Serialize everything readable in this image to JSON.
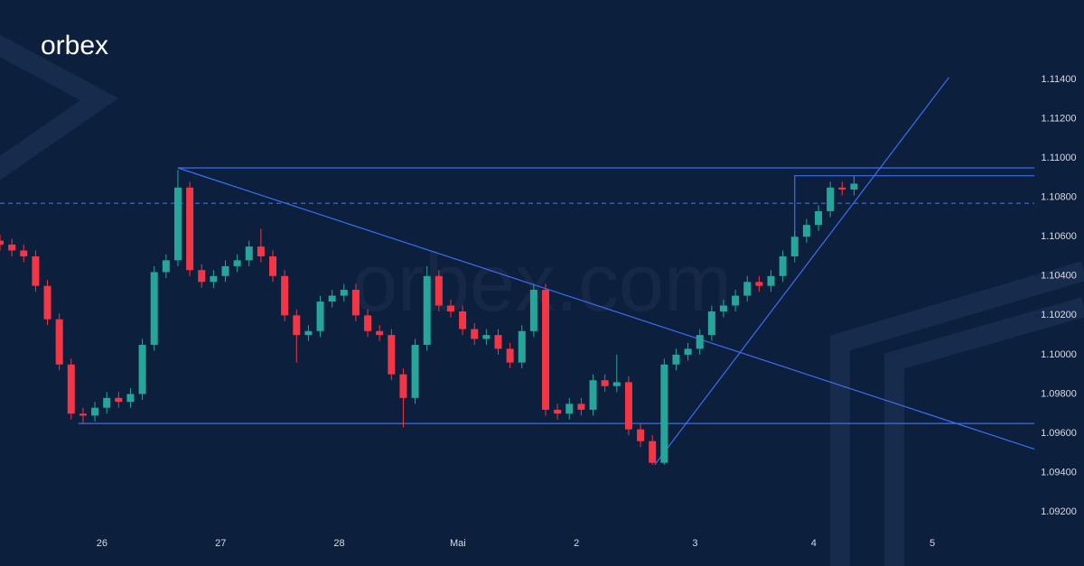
{
  "logo": "orbex",
  "watermark": "orbex.com",
  "chart_data": {
    "type": "candlestick",
    "up_color": "#26a69a",
    "down_color": "#f23645",
    "line_color": "#3d6ef0",
    "xlim": [
      -0.86,
      7.86
    ],
    "ylim": [
      1.09095,
      1.11804
    ],
    "xticks": [
      {
        "value": 0,
        "label": "26"
      },
      {
        "value": 1,
        "label": "27"
      },
      {
        "value": 2,
        "label": "28"
      },
      {
        "value": 3,
        "label": "Mai"
      },
      {
        "value": 4,
        "label": "2"
      },
      {
        "value": 5,
        "label": "3"
      },
      {
        "value": 6,
        "label": "4"
      },
      {
        "value": 7,
        "label": "5"
      }
    ],
    "yticks": [
      {
        "value": 1.092,
        "label": "1.09200"
      },
      {
        "value": 1.094,
        "label": "1.09400"
      },
      {
        "value": 1.096,
        "label": "1.09600"
      },
      {
        "value": 1.098,
        "label": "1.09800"
      },
      {
        "value": 1.1,
        "label": "1.10000"
      },
      {
        "value": 1.102,
        "label": "1.10200"
      },
      {
        "value": 1.104,
        "label": "1.10400"
      },
      {
        "value": 1.106,
        "label": "1.10600"
      },
      {
        "value": 1.108,
        "label": "1.10800"
      },
      {
        "value": 1.11,
        "label": "1.11000"
      },
      {
        "value": 1.112,
        "label": "1.11200"
      },
      {
        "value": 1.114,
        "label": "1.11400"
      }
    ],
    "x": [
      -0.86,
      -0.76,
      -0.66,
      -0.56,
      -0.46,
      -0.36,
      -0.26,
      -0.16,
      -0.06,
      0.04,
      0.14,
      0.24,
      0.34,
      0.44,
      0.54,
      0.64,
      0.74,
      0.84,
      0.94,
      1.04,
      1.14,
      1.24,
      1.34,
      1.44,
      1.54,
      1.64,
      1.74,
      1.84,
      1.94,
      2.04,
      2.14,
      2.24,
      2.34,
      2.44,
      2.54,
      2.64,
      2.74,
      2.84,
      2.94,
      3.04,
      3.14,
      3.24,
      3.34,
      3.44,
      3.54,
      3.64,
      3.74,
      3.84,
      3.94,
      4.04,
      4.14,
      4.24,
      4.34,
      4.44,
      4.54,
      4.64,
      4.74,
      4.84,
      4.94,
      5.04,
      5.14,
      5.24,
      5.34,
      5.44,
      5.54,
      5.64,
      5.74,
      5.84,
      5.94,
      6.04,
      6.14,
      6.24,
      6.34
    ],
    "open": [
      1.1058,
      1.1056,
      1.1053,
      1.105,
      1.1035,
      1.1018,
      1.0995,
      1.097,
      1.0969,
      1.0973,
      1.0978,
      1.0976,
      1.098,
      1.1005,
      1.1042,
      1.1048,
      1.1085,
      1.1043,
      1.1037,
      1.104,
      1.1045,
      1.1048,
      1.1055,
      1.105,
      1.104,
      1.102,
      1.101,
      1.1012,
      1.1027,
      1.103,
      1.1033,
      1.102,
      1.1012,
      1.101,
      1.099,
      1.0978,
      1.1005,
      1.104,
      1.1025,
      1.1022,
      1.1013,
      1.1008,
      1.101,
      1.1003,
      1.0996,
      1.1012,
      1.1033,
      1.0972,
      1.097,
      1.0975,
      1.0972,
      1.0987,
      1.0984,
      1.0986,
      1.0962,
      1.0956,
      1.0945,
      1.0995,
      1.1,
      1.1003,
      1.101,
      1.1022,
      1.1025,
      1.103,
      1.1037,
      1.1035,
      1.104,
      1.105,
      1.106,
      1.1066,
      1.1073,
      1.1085,
      1.1084
    ],
    "high": [
      1.1061,
      1.1059,
      1.1056,
      1.1053,
      1.1038,
      1.1021,
      1.0998,
      1.0973,
      1.0976,
      1.0981,
      1.0981,
      1.0983,
      1.1008,
      1.1045,
      1.1051,
      1.1094,
      1.1088,
      1.1046,
      1.1043,
      1.1048,
      1.1051,
      1.1058,
      1.1064,
      1.1053,
      1.1043,
      1.1023,
      1.1015,
      1.103,
      1.1033,
      1.1036,
      1.1036,
      1.1023,
      1.1015,
      1.1013,
      1.0993,
      1.1008,
      1.1045,
      1.1043,
      1.1028,
      1.1025,
      1.1016,
      1.1013,
      1.1013,
      1.1006,
      1.1015,
      1.1036,
      1.1036,
      1.0975,
      1.0978,
      1.0978,
      1.099,
      1.099,
      1.1,
      1.0989,
      1.0965,
      1.0959,
      1.0998,
      1.1003,
      1.1006,
      1.1013,
      1.1025,
      1.1028,
      1.1033,
      1.104,
      1.104,
      1.1043,
      1.1053,
      1.1063,
      1.1069,
      1.1076,
      1.1088,
      1.1088,
      1.1091
    ],
    "low": [
      1.1053,
      1.105,
      1.1047,
      1.1032,
      1.1015,
      1.0992,
      1.0967,
      1.0965,
      1.0966,
      1.097,
      1.0973,
      1.0973,
      1.0977,
      1.1002,
      1.1039,
      1.1045,
      1.104,
      1.1034,
      1.1034,
      1.1037,
      1.1042,
      1.1045,
      1.1047,
      1.1037,
      1.1017,
      1.0996,
      1.1007,
      1.1009,
      1.1024,
      1.1027,
      1.1017,
      1.1009,
      1.1007,
      1.0987,
      1.0963,
      1.0975,
      1.1002,
      1.1022,
      1.1019,
      1.101,
      1.1005,
      1.1005,
      1.1,
      1.0993,
      1.0993,
      1.1009,
      1.0969,
      1.0967,
      1.0967,
      1.0969,
      1.0969,
      1.0981,
      1.0981,
      1.0959,
      1.0953,
      1.0944,
      1.0944,
      1.0992,
      1.0997,
      1.1,
      1.1007,
      1.1019,
      1.1022,
      1.1027,
      1.1032,
      1.1032,
      1.1037,
      1.1047,
      1.1057,
      1.1063,
      1.107,
      1.1081,
      1.1081
    ],
    "close": [
      1.1056,
      1.1053,
      1.105,
      1.1035,
      1.1018,
      1.0995,
      1.097,
      1.0969,
      1.0973,
      1.0978,
      1.0976,
      1.098,
      1.1005,
      1.1042,
      1.1048,
      1.1085,
      1.1043,
      1.1037,
      1.104,
      1.1045,
      1.1048,
      1.1055,
      1.105,
      1.104,
      1.102,
      1.101,
      1.1012,
      1.1027,
      1.103,
      1.1033,
      1.102,
      1.1012,
      1.101,
      1.099,
      1.0978,
      1.1005,
      1.104,
      1.1025,
      1.1022,
      1.1013,
      1.1008,
      1.101,
      1.1003,
      1.0996,
      1.1012,
      1.1033,
      1.0972,
      1.097,
      1.0975,
      1.0972,
      1.0987,
      1.0984,
      1.0986,
      1.0962,
      1.0956,
      1.0945,
      1.0995,
      1.1,
      1.1003,
      1.101,
      1.1022,
      1.1025,
      1.103,
      1.1037,
      1.1035,
      1.104,
      1.105,
      1.106,
      1.1066,
      1.1073,
      1.1085,
      1.1084,
      1.1087
    ],
    "lines": [
      {
        "x": [
          0.64,
          7.86
        ],
        "y": [
          1.1095,
          1.1095
        ]
      },
      {
        "x": [
          -0.2,
          7.86
        ],
        "y": [
          1.0965,
          1.0965
        ]
      },
      {
        "x": [
          -0.86,
          7.86
        ],
        "y": [
          1.1077,
          1.1077
        ],
        "dashed": true
      },
      {
        "x": [
          0.64,
          7.86
        ],
        "y": [
          1.1095,
          1.0952
        ]
      },
      {
        "x": [
          4.66,
          7.14
        ],
        "y": [
          1.0944,
          1.1141
        ]
      },
      {
        "x": [
          5.84,
          5.84,
          7.86
        ],
        "y": [
          1.1055,
          1.1091,
          1.1091
        ]
      }
    ]
  }
}
